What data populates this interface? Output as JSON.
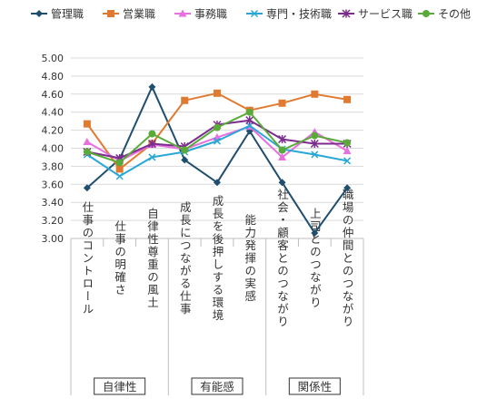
{
  "chart_data": {
    "type": "line",
    "categories": [
      "仕事のコントロール",
      "仕事の明確さ",
      "自律性尊重の風土",
      "成長につながる仕事",
      "成長を後押しする環境",
      "能力発揮の実感",
      "社会・顧客とのつながり",
      "上司とのつながり",
      "職場の仲間とのつながり"
    ],
    "groups": [
      {
        "label": "自律性",
        "span": [
          0,
          2
        ]
      },
      {
        "label": "有能感",
        "span": [
          3,
          5
        ]
      },
      {
        "label": "関係性",
        "span": [
          6,
          8
        ]
      }
    ],
    "ylim": [
      3.0,
      5.0
    ],
    "yticks": [
      "3.00",
      "3.20",
      "3.40",
      "3.60",
      "3.80",
      "4.00",
      "4.20",
      "4.40",
      "4.60",
      "4.80",
      "5.00"
    ],
    "grid": true,
    "legend_position": "top",
    "series": [
      {
        "name": "管理職",
        "color": "#1f4e6e",
        "marker": "diamond",
        "values": [
          3.56,
          3.88,
          4.68,
          3.87,
          3.62,
          4.19,
          3.62,
          3.06,
          3.56
        ]
      },
      {
        "name": "営業職",
        "color": "#e07a30",
        "marker": "square",
        "values": [
          4.27,
          3.77,
          4.05,
          4.53,
          4.61,
          4.42,
          4.5,
          4.6,
          4.54
        ]
      },
      {
        "name": "事務職",
        "color": "#e86fe0",
        "marker": "triangle",
        "values": [
          4.07,
          3.86,
          4.04,
          3.99,
          4.12,
          4.24,
          3.9,
          4.18,
          3.97
        ]
      },
      {
        "name": "専門・技術職",
        "color": "#29a7d6",
        "marker": "x",
        "values": [
          3.93,
          3.69,
          3.9,
          3.96,
          4.08,
          4.25,
          3.99,
          3.93,
          3.86
        ]
      },
      {
        "name": "サービス職",
        "color": "#7b2d8e",
        "marker": "star",
        "values": [
          3.96,
          3.89,
          4.05,
          4.02,
          4.26,
          4.31,
          4.1,
          4.05,
          4.05
        ]
      },
      {
        "name": "その他",
        "color": "#5aaa3a",
        "marker": "circle",
        "values": [
          3.96,
          3.84,
          4.16,
          3.98,
          4.23,
          4.4,
          3.98,
          4.14,
          4.06
        ]
      }
    ]
  }
}
